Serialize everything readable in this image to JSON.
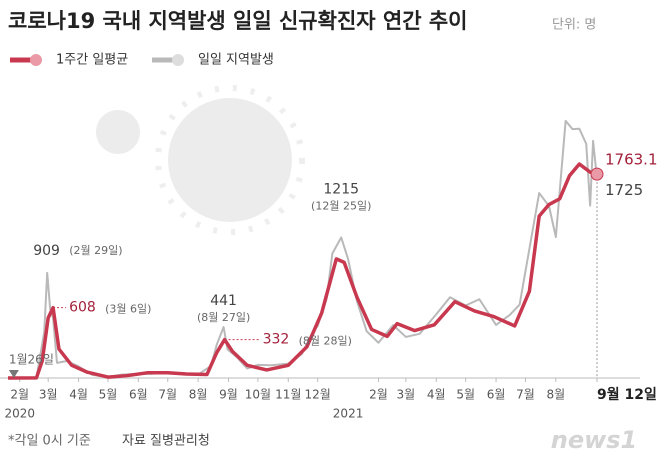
{
  "chart_data": {
    "type": "line",
    "title": "코로나19 국내 지역발생 일일 신규확진자 연간 추이",
    "unit": "단위: 명",
    "series": [
      {
        "name": "1주간 일평균",
        "color": "#c8384f",
        "x": [
          "2020-01-20",
          "2020-02-18",
          "2020-02-24",
          "2020-03-01",
          "2020-03-06",
          "2020-03-12",
          "2020-03-25",
          "2020-04-10",
          "2020-05-01",
          "2020-05-20",
          "2020-06-10",
          "2020-07-01",
          "2020-07-20",
          "2020-08-10",
          "2020-08-20",
          "2020-08-28",
          "2020-09-05",
          "2020-09-20",
          "2020-10-10",
          "2020-11-01",
          "2020-11-20",
          "2020-12-05",
          "2020-12-20",
          "2020-12-28",
          "2021-01-10",
          "2021-01-25",
          "2021-02-10",
          "2021-02-20",
          "2021-03-10",
          "2021-03-30",
          "2021-04-20",
          "2021-05-10",
          "2021-05-30",
          "2021-06-20",
          "2021-07-05",
          "2021-07-15",
          "2021-07-25",
          "2021-08-05",
          "2021-08-15",
          "2021-08-25",
          "2021-09-05",
          "2021-09-12"
        ],
        "values": [
          0,
          1,
          150,
          520,
          608,
          250,
          110,
          50,
          8,
          20,
          45,
          45,
          35,
          30,
          220,
          332,
          230,
          110,
          70,
          110,
          270,
          560,
          1030,
          1000,
          700,
          420,
          360,
          470,
          410,
          460,
          660,
          580,
          530,
          450,
          750,
          1400,
          1500,
          1550,
          1750,
          1850,
          1780,
          1763.1
        ]
      },
      {
        "name": "일일 지역발생",
        "color": "#b9b9b9",
        "x": [
          "2020-01-20",
          "2020-02-18",
          "2020-02-22",
          "2020-02-26",
          "2020-02-29",
          "2020-03-03",
          "2020-03-06",
          "2020-03-10",
          "2020-03-20",
          "2020-04-01",
          "2020-04-15",
          "2020-05-01",
          "2020-05-15",
          "2020-06-01",
          "2020-06-15",
          "2020-07-01",
          "2020-07-15",
          "2020-08-01",
          "2020-08-14",
          "2020-08-20",
          "2020-08-27",
          "2020-08-31",
          "2020-09-10",
          "2020-09-20",
          "2020-10-01",
          "2020-10-15",
          "2020-11-01",
          "2020-11-15",
          "2020-11-25",
          "2020-12-01",
          "2020-12-10",
          "2020-12-16",
          "2020-12-25",
          "2021-01-01",
          "2021-01-10",
          "2021-01-20",
          "2021-02-01",
          "2021-02-16",
          "2021-03-01",
          "2021-03-15",
          "2021-04-01",
          "2021-04-15",
          "2021-05-01",
          "2021-05-15",
          "2021-06-01",
          "2021-06-15",
          "2021-06-25",
          "2021-07-07",
          "2021-07-15",
          "2021-07-25",
          "2021-08-01",
          "2021-08-11",
          "2021-08-18",
          "2021-08-25",
          "2021-09-01",
          "2021-09-05",
          "2021-09-08",
          "2021-09-12"
        ],
        "values": [
          1,
          2,
          200,
          400,
          909,
          600,
          518,
          131,
          147,
          101,
          27,
          9,
          29,
          35,
          37,
          51,
          39,
          31,
          103,
          288,
          441,
          248,
          176,
          82,
          113,
          110,
          124,
          208,
          382,
          451,
          682,
          1078,
          1215,
          1029,
          665,
          404,
          305,
          457,
          355,
          382,
          551,
          698,
          627,
          681,
          459,
          545,
          634,
          1212,
          1599,
          1487,
          1219,
          2223,
          2152,
          2155,
          2025,
          1490,
          2050,
          1725
        ]
      }
    ],
    "xlim": [
      "2020-01-20",
      "2021-09-12"
    ],
    "ylim": [
      0,
      2300
    ],
    "xticks": [
      {
        "value": "2020-02-01",
        "label": "2월"
      },
      {
        "value": "2020-03-01",
        "label": "3월"
      },
      {
        "value": "2020-04-01",
        "label": "4월"
      },
      {
        "value": "2020-05-01",
        "label": "5월"
      },
      {
        "value": "2020-06-01",
        "label": "6월"
      },
      {
        "value": "2020-07-01",
        "label": "7월"
      },
      {
        "value": "2020-08-01",
        "label": "8월"
      },
      {
        "value": "2020-09-01",
        "label": "9월"
      },
      {
        "value": "2020-10-01",
        "label": "10월"
      },
      {
        "value": "2020-11-01",
        "label": "11월"
      },
      {
        "value": "2020-12-01",
        "label": "12월"
      },
      {
        "value": "2021-02-01",
        "label": "2월"
      },
      {
        "value": "2021-03-01",
        "label": "3월"
      },
      {
        "value": "2021-04-01",
        "label": "4월"
      },
      {
        "value": "2021-05-01",
        "label": "5월"
      },
      {
        "value": "2021-06-01",
        "label": "6월"
      },
      {
        "value": "2021-07-01",
        "label": "7월"
      },
      {
        "value": "2021-08-01",
        "label": "8월"
      },
      {
        "value": "2021-09-12",
        "label": "9월 12일"
      }
    ],
    "year_labels": [
      {
        "value": "2020-02-01",
        "label": "2020"
      },
      {
        "value": "2021-01-01",
        "label": "2021"
      }
    ],
    "annotations": [
      {
        "x": "2020-01-26",
        "label": "1월26일"
      },
      {
        "x": "2020-02-29",
        "value": 909,
        "label": "909",
        "note": "(2월 29일)"
      },
      {
        "x": "2020-03-06",
        "value": 608,
        "label": "608",
        "note": "(3월 6일)"
      },
      {
        "x": "2020-08-27",
        "value": 441,
        "label": "441",
        "note": "(8월 27일)"
      },
      {
        "x": "2020-08-28",
        "value": 332,
        "label": "332",
        "note": "(8월 28일)"
      },
      {
        "x": "2020-12-25",
        "value": 1215,
        "label": "1215",
        "note": "(12월 25일)"
      },
      {
        "x": "2021-09-12",
        "value": 1763.1,
        "label": "1763.1"
      },
      {
        "x": "2021-09-12",
        "value": 1725,
        "label": "1725"
      }
    ],
    "footnote": "*각일 0시 기준",
    "source": "자료 질병관리청",
    "logo": "news1"
  }
}
